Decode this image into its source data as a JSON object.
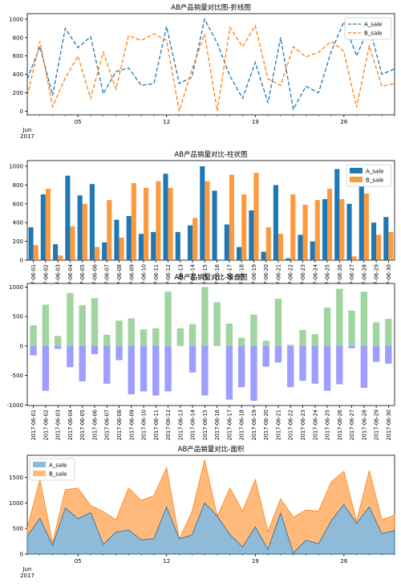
{
  "colors": {
    "a": "#1f77b4",
    "b": "#ff7f0e",
    "pos": "#2ca02c",
    "neg": "#0000ff"
  },
  "chart_data": [
    {
      "type": "line",
      "title": "AB产品销量对比图-折线图",
      "x": [
        "2017-06-01",
        "2017-06-02",
        "2017-06-03",
        "2017-06-04",
        "2017-06-05",
        "2017-06-06",
        "2017-06-07",
        "2017-06-08",
        "2017-06-09",
        "2017-06-10",
        "2017-06-11",
        "2017-06-12",
        "2017-06-13",
        "2017-06-14",
        "2017-06-15",
        "2017-06-16",
        "2017-06-17",
        "2017-06-18",
        "2017-06-19",
        "2017-06-20",
        "2017-06-21",
        "2017-06-22",
        "2017-06-23",
        "2017-06-24",
        "2017-06-25",
        "2017-06-26",
        "2017-06-27",
        "2017-06-28",
        "2017-06-29",
        "2017-06-30"
      ],
      "series": [
        {
          "name": "A_sale",
          "style": "dashed",
          "values": [
            350,
            700,
            170,
            900,
            690,
            810,
            190,
            430,
            470,
            280,
            300,
            920,
            300,
            370,
            1000,
            740,
            380,
            140,
            530,
            90,
            800,
            20,
            270,
            200,
            650,
            970,
            600,
            920,
            400,
            460
          ]
        },
        {
          "name": "B_sale",
          "style": "dashed",
          "values": [
            160,
            760,
            50,
            360,
            600,
            140,
            640,
            240,
            820,
            770,
            840,
            770,
            0,
            450,
            840,
            0,
            910,
            700,
            930,
            350,
            280,
            700,
            590,
            640,
            760,
            650,
            40,
            710,
            270,
            300
          ]
        }
      ],
      "xtick_labels": [
        "05",
        "12",
        "19",
        "26"
      ],
      "xtick_sub": [
        "Jun",
        "2017"
      ],
      "yticks": [
        0,
        200,
        400,
        600,
        800,
        1000
      ],
      "ylim": [
        -40,
        1060
      ],
      "legend": "top-right"
    },
    {
      "type": "bar",
      "title": "AB产品销量对比-柱状图",
      "categories_ref": "x",
      "series_ref": [
        "A_sale",
        "B_sale"
      ],
      "yticks": [
        0,
        200,
        400,
        600,
        800,
        1000
      ],
      "ylim": [
        0,
        1060
      ],
      "legend": "top-right"
    },
    {
      "type": "bar",
      "title": "AB产品销量对比-堆叠图",
      "note_stack": "A_sale positive (green), B_sale negative (blue)",
      "yticks": [
        -1000,
        -500,
        0,
        500,
        1000
      ],
      "ylim": [
        -1010,
        1060
      ]
    },
    {
      "type": "area",
      "title": "AB产品销量对比-面积",
      "stacked": true,
      "yticks": [
        0,
        500,
        1000,
        1500
      ],
      "ylim": [
        0,
        1930
      ],
      "xtick_labels": [
        "05",
        "12",
        "19",
        "26"
      ],
      "xtick_sub": [
        "Jun",
        "2017"
      ],
      "legend": "top-left"
    }
  ]
}
